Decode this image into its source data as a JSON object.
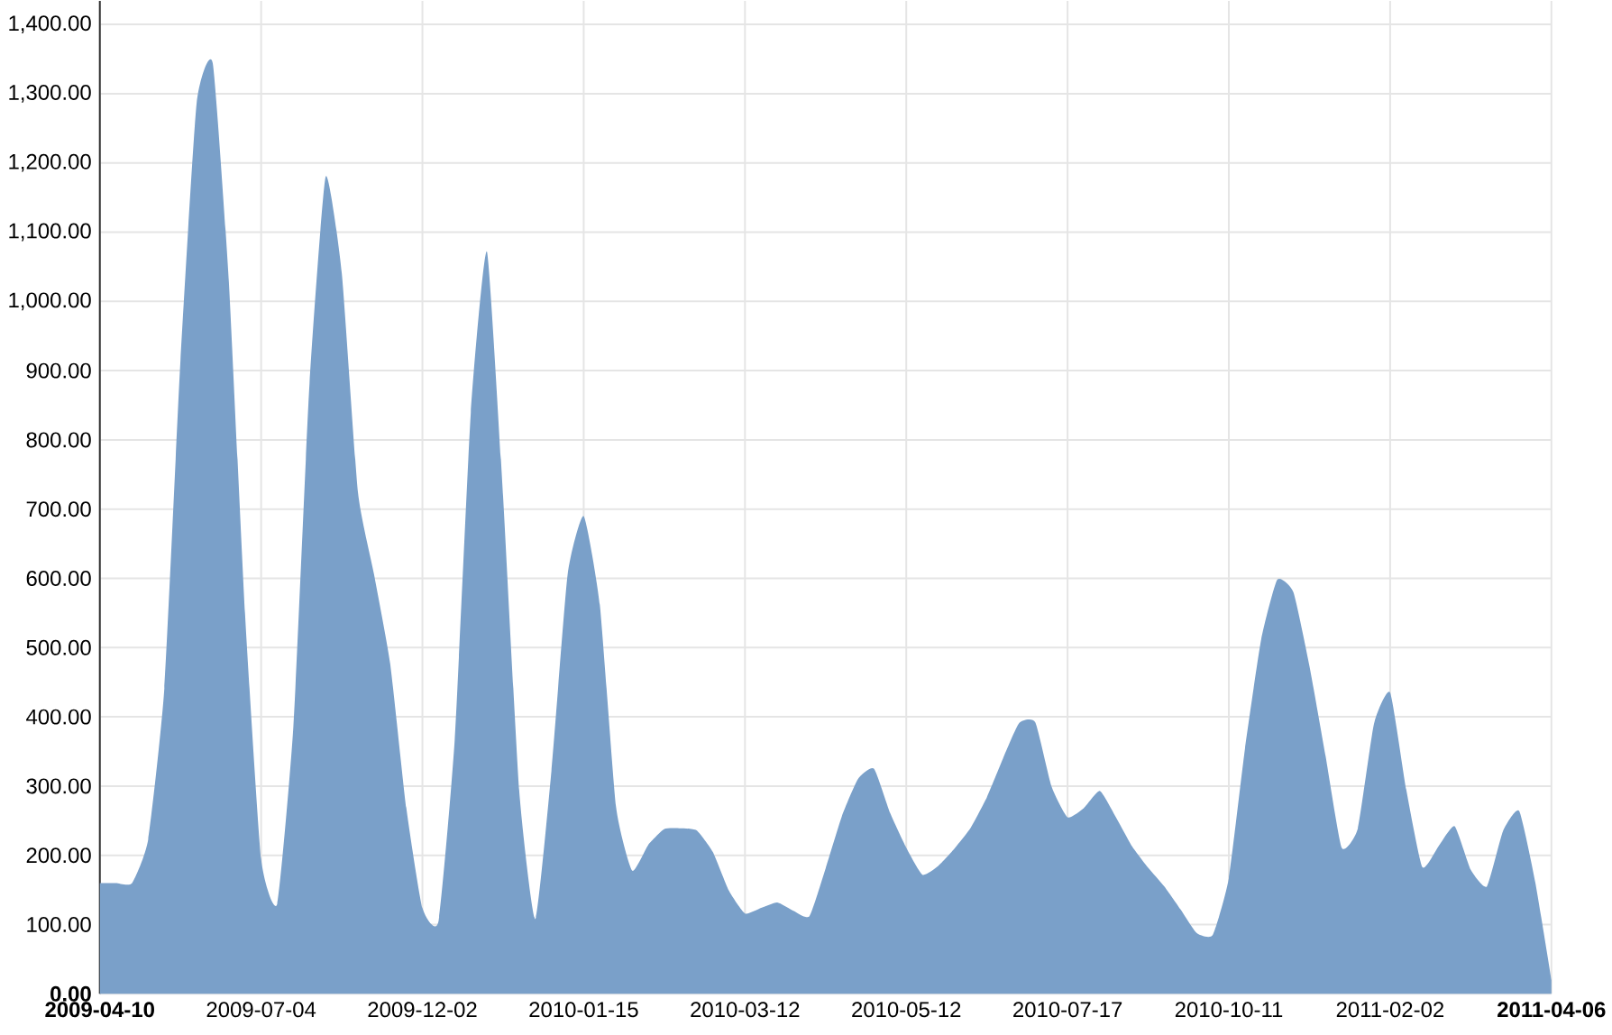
{
  "chart_data": {
    "type": "area",
    "categories": [
      "2009-04-10",
      null,
      null,
      null,
      null,
      null,
      null,
      null,
      null,
      null,
      "2009-07-04",
      null,
      null,
      null,
      null,
      null,
      null,
      null,
      null,
      null,
      "2009-12-02",
      null,
      null,
      null,
      null,
      null,
      null,
      null,
      null,
      null,
      "2010-01-15",
      null,
      null,
      null,
      null,
      null,
      null,
      null,
      null,
      null,
      "2010-03-12",
      null,
      null,
      null,
      null,
      null,
      null,
      null,
      null,
      null,
      "2010-05-12",
      null,
      null,
      null,
      null,
      null,
      null,
      null,
      null,
      null,
      "2010-07-17",
      null,
      null,
      null,
      null,
      null,
      null,
      null,
      null,
      null,
      "2010-10-11",
      null,
      null,
      null,
      null,
      null,
      null,
      null,
      null,
      null,
      "2011-02-02",
      null,
      null,
      null,
      null,
      null,
      null,
      null,
      null,
      null,
      "2011-04-06"
    ],
    "values": [
      160,
      160,
      160,
      223,
      441,
      915,
      1286,
      1344,
      1028,
      550,
      195,
      130,
      386,
      881,
      1180,
      1041,
      725,
      606,
      477,
      269,
      124,
      105,
      366,
      839,
      1072,
      719,
      294,
      108,
      322,
      605,
      690,
      562,
      271,
      178,
      215,
      238,
      239,
      236,
      205,
      149,
      116,
      124,
      132,
      120,
      112,
      181,
      256,
      310,
      325,
      261,
      211,
      172,
      185,
      210,
      240,
      284,
      340,
      391,
      392,
      300,
      255,
      268,
      293,
      255,
      213,
      182,
      155,
      122,
      88,
      85,
      167,
      354,
      511,
      598,
      580,
      473,
      343,
      211,
      239,
      390,
      435,
      295,
      183,
      213,
      242,
      179,
      155,
      235,
      264,
      161,
      20
    ],
    "color": "#7aa0c9",
    "ylim": [
      0,
      1434
    ],
    "yticks": [
      {
        "value": 0,
        "label": "0.00"
      },
      {
        "value": 100,
        "label": "100.00"
      },
      {
        "value": 200,
        "label": "200.00"
      },
      {
        "value": 300,
        "label": "300.00"
      },
      {
        "value": 400,
        "label": "400.00"
      },
      {
        "value": 500,
        "label": "500.00"
      },
      {
        "value": 600,
        "label": "600.00"
      },
      {
        "value": 700,
        "label": "700.00"
      },
      {
        "value": 800,
        "label": "800.00"
      },
      {
        "value": 900,
        "label": "900.00"
      },
      {
        "value": 1000,
        "label": "1,000.00"
      },
      {
        "value": 1100,
        "label": "1,100.00"
      },
      {
        "value": 1200,
        "label": "1,200.00"
      },
      {
        "value": 1300,
        "label": "1,300.00"
      },
      {
        "value": 1400,
        "label": "1,400.00"
      }
    ],
    "grid": true
  }
}
